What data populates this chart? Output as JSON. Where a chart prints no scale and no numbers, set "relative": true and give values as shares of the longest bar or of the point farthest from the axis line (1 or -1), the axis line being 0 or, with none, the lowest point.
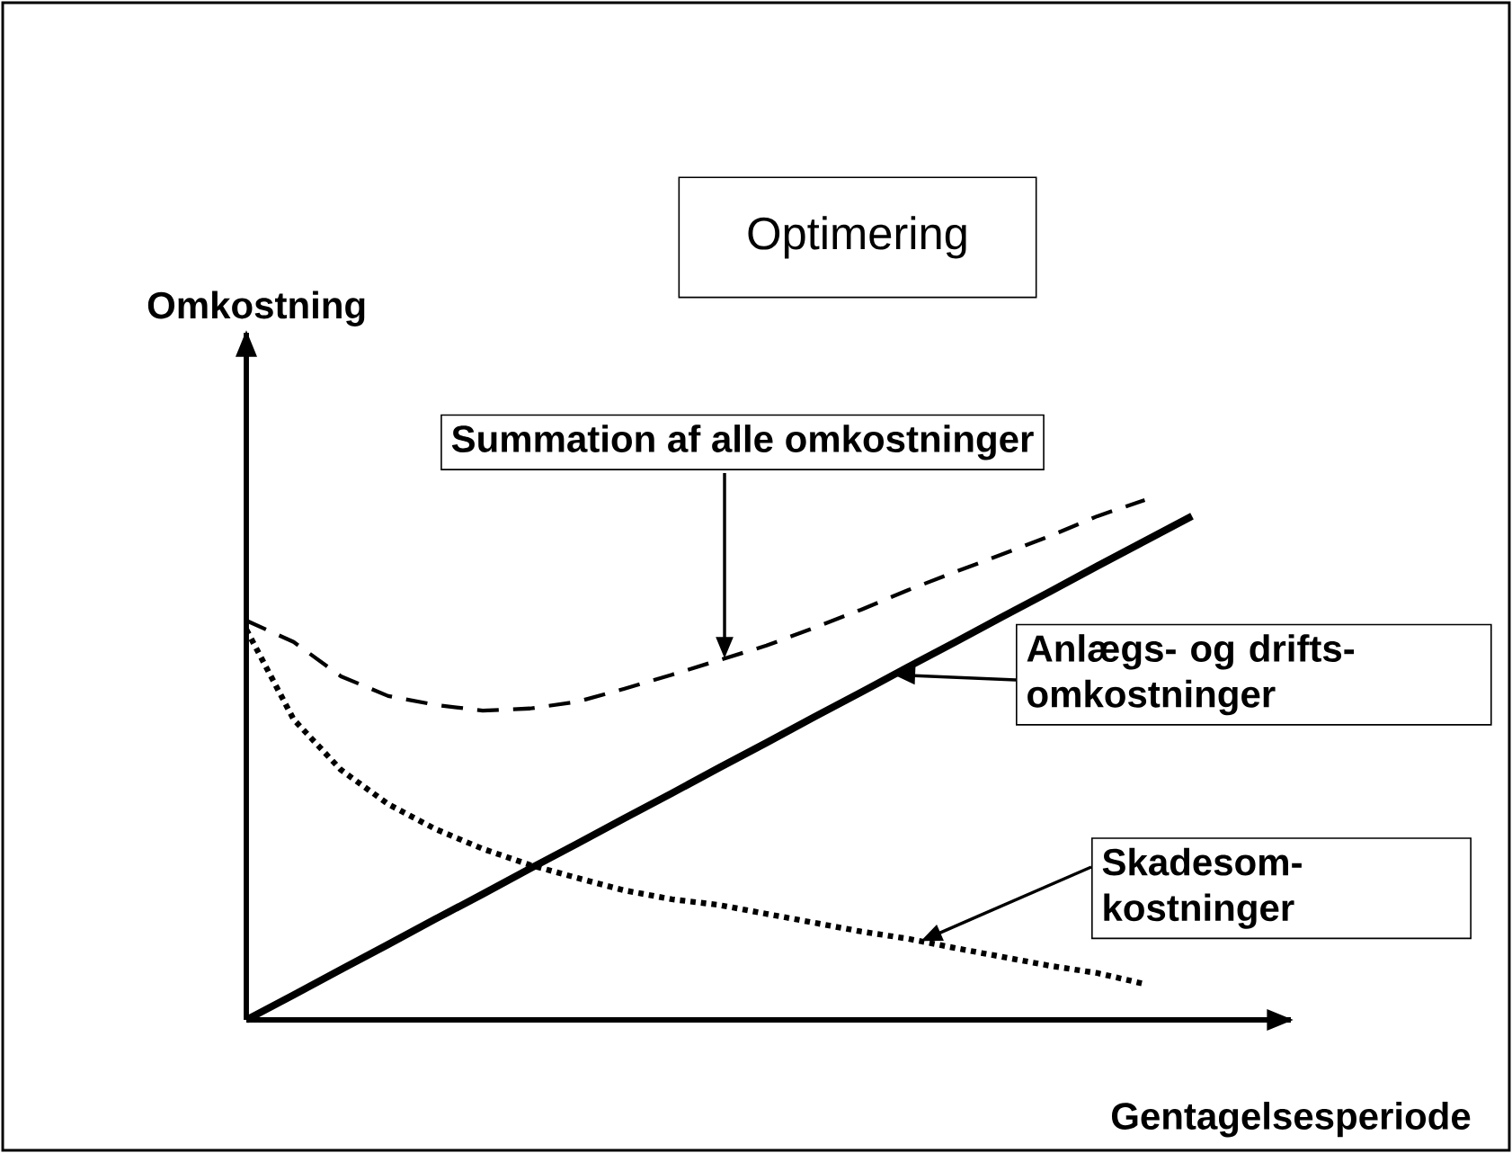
{
  "chart_data": {
    "type": "line",
    "relative": true,
    "title": "Optimering",
    "xlabel": "Gentagelsesperiode",
    "ylabel": "Omkostning",
    "categories": [
      null,
      null,
      null,
      null,
      null,
      null,
      null,
      null,
      null,
      null,
      null,
      null,
      null,
      null,
      null,
      null,
      null,
      null,
      null,
      null,
      null
    ],
    "series": [
      {
        "color": "#000000",
        "line_style": "dashed",
        "values": [
          0.768,
          0.727,
          0.661,
          0.623,
          0.606,
          0.595,
          0.599,
          0.612,
          0.637,
          0.664,
          0.692,
          0.72,
          0.754,
          0.789,
          0.827,
          0.862,
          0.896,
          0.931,
          0.969,
          1.0,
          null
        ]
      },
      {
        "color": "#000000",
        "line_style": "solid",
        "values": [
          0,
          0.048,
          0.097,
          0.145,
          0.194,
          0.242,
          0.291,
          0.339,
          0.388,
          0.436,
          0.485,
          0.533,
          0.582,
          0.63,
          0.679,
          0.727,
          0.776,
          0.824,
          0.873,
          0.921,
          0.969
        ]
      },
      {
        "color": "#000000",
        "line_style": "dotted",
        "values": [
          0.751,
          0.578,
          0.481,
          0.415,
          0.367,
          0.329,
          0.298,
          0.273,
          0.249,
          0.232,
          0.221,
          0.204,
          0.187,
          0.17,
          0.156,
          0.138,
          0.121,
          0.104,
          0.09,
          0.069,
          null
        ]
      }
    ],
    "annotations": [
      "Summation af alle omkostninger",
      "Anlægs- og drifts-omkostninger",
      "Skadesom-kostninger"
    ]
  }
}
